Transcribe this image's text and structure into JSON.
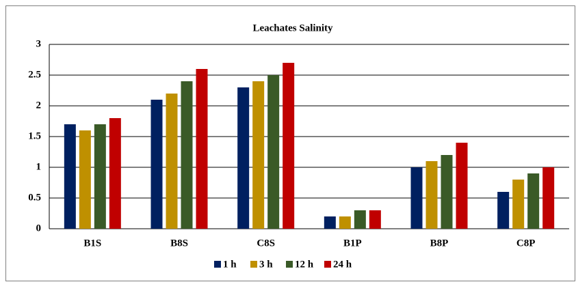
{
  "chart_data": {
    "type": "bar",
    "title": "Leachates Salinity",
    "categories": [
      "B1S",
      "B8S",
      "C8S",
      "B1P",
      "B8P",
      "C8P"
    ],
    "series": [
      {
        "name": "1 h",
        "color": "#002060",
        "values": [
          1.7,
          2.1,
          2.3,
          0.2,
          1.0,
          0.6
        ]
      },
      {
        "name": "3 h",
        "color": "#bf9000",
        "values": [
          1.6,
          2.2,
          2.4,
          0.2,
          1.1,
          0.8
        ]
      },
      {
        "name": "12 h",
        "color": "#3a5a27",
        "values": [
          1.7,
          2.4,
          2.5,
          0.3,
          1.2,
          0.9
        ]
      },
      {
        "name": "24 h",
        "color": "#c00000",
        "values": [
          1.8,
          2.6,
          2.7,
          0.3,
          1.4,
          1.0
        ]
      }
    ],
    "ylim": [
      0,
      3
    ],
    "yticks": [
      0,
      0.5,
      1,
      1.5,
      2,
      2.5,
      3
    ],
    "grid": true,
    "legend": "bottom"
  }
}
